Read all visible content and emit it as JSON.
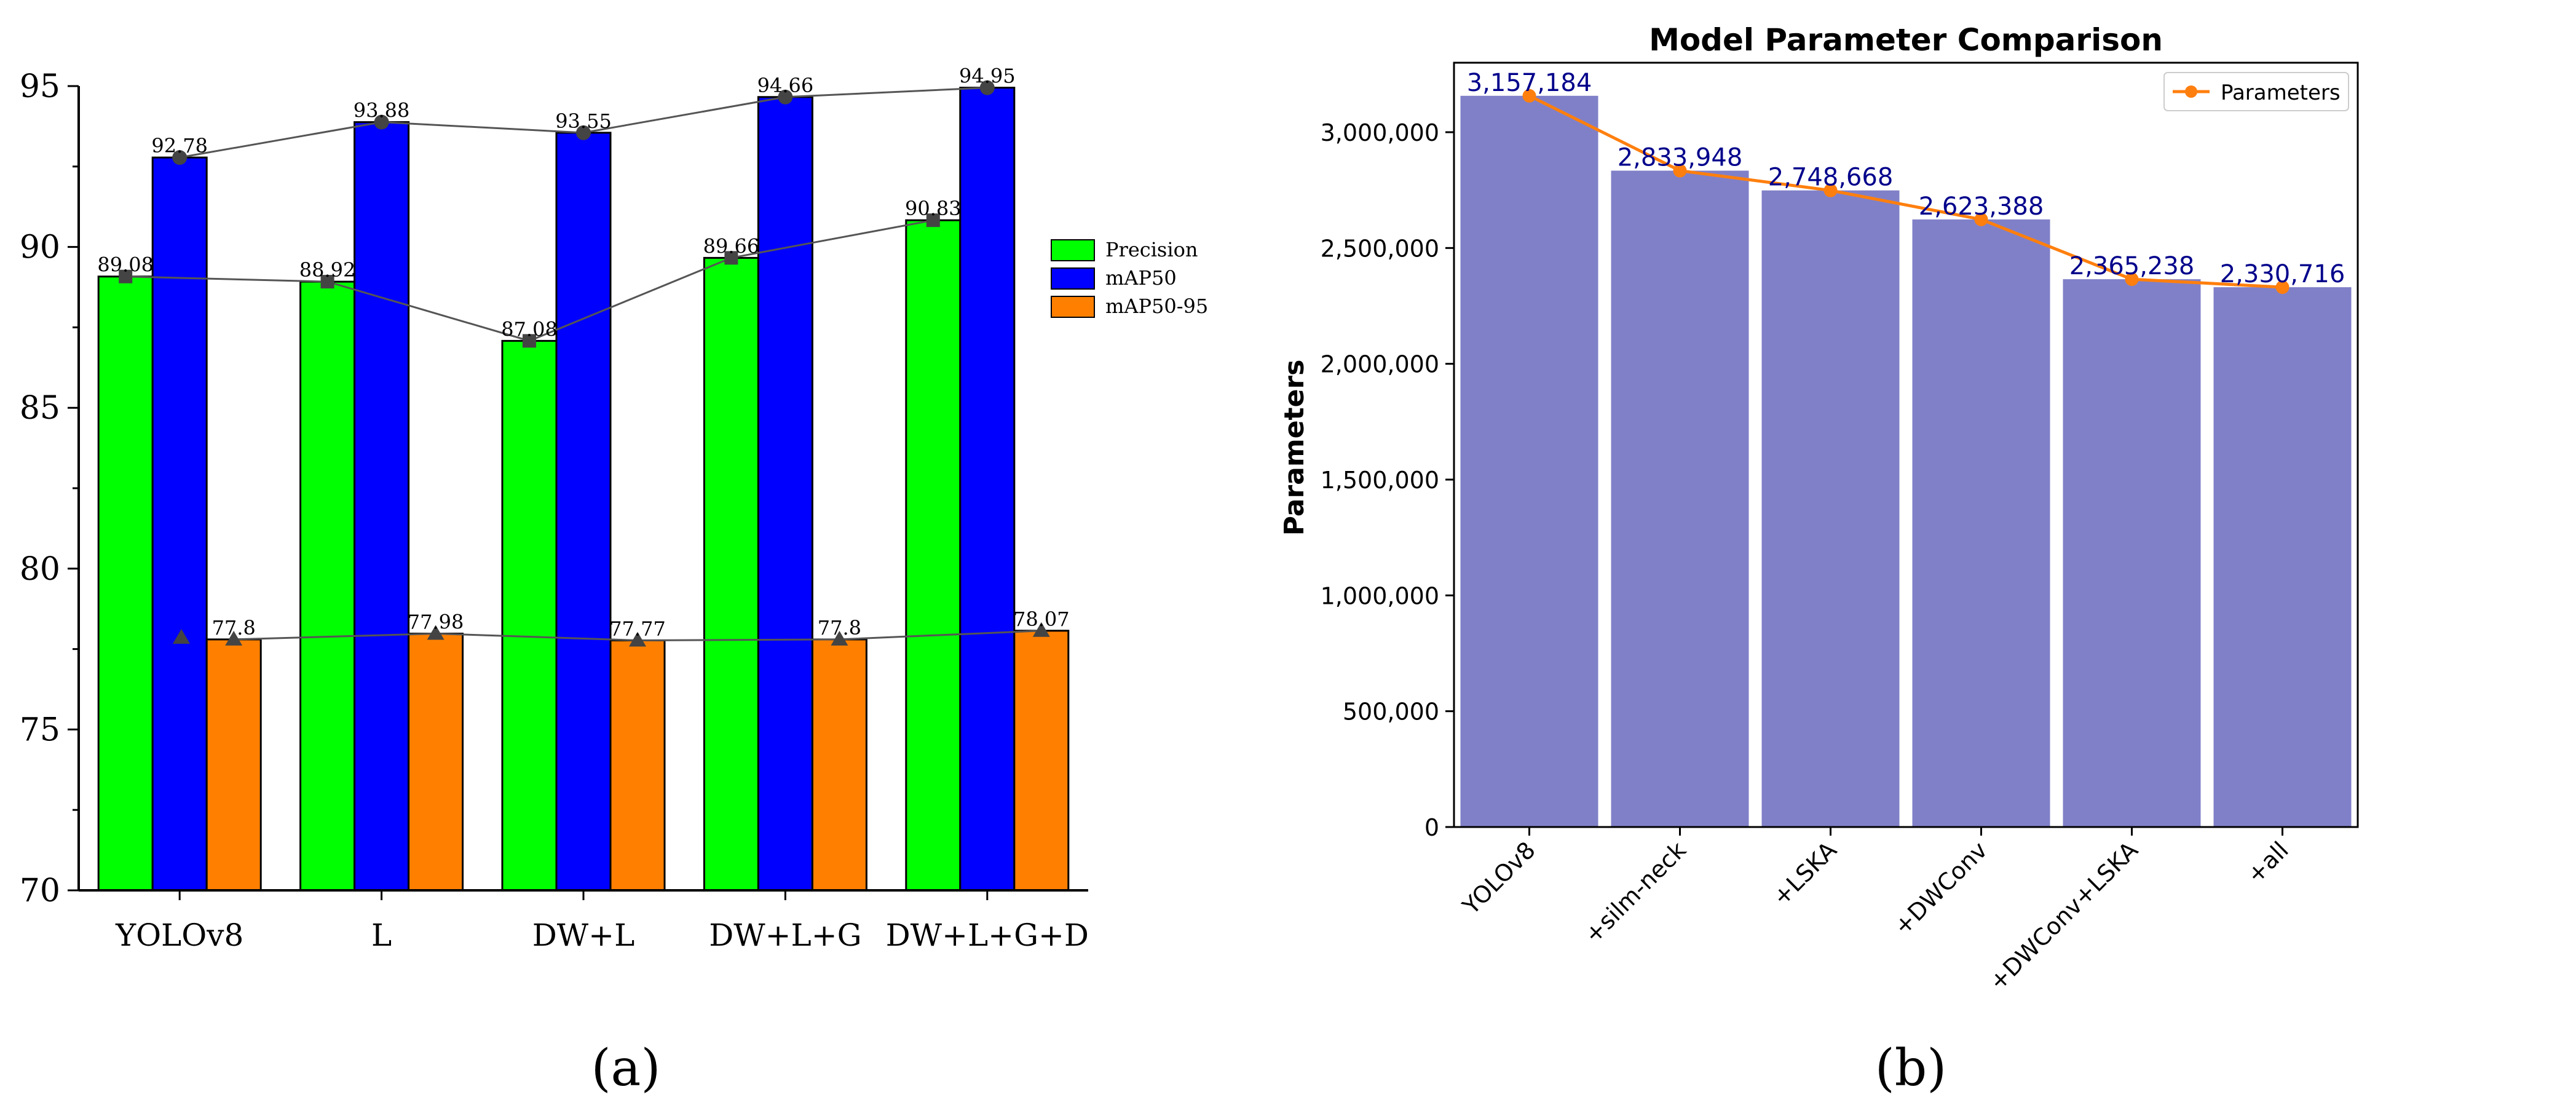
{
  "chart_data": [
    {
      "type": "bar",
      "panel_label": "(a)",
      "categories": [
        "YOLOv8",
        "L",
        "DW+L",
        "DW+L+G",
        "DW+L+G+D"
      ],
      "ylim": [
        70,
        95
      ],
      "yticks": [
        70,
        75,
        80,
        85,
        90,
        95
      ],
      "legend_position": "right",
      "series": [
        {
          "name": "Precision",
          "color": "#00ff00",
          "values": [
            89.08,
            88.92,
            87.08,
            89.66,
            90.83
          ],
          "labels": [
            "89.08",
            "88.92",
            "87.08",
            "89.66",
            "90.83"
          ],
          "marker": "square"
        },
        {
          "name": "mAP50",
          "color": "#0000ff",
          "values": [
            92.78,
            93.88,
            93.55,
            94.66,
            94.95
          ],
          "labels": [
            "92.78",
            "93.88",
            "93.55",
            "94.66",
            "94.95"
          ],
          "marker": "circle"
        },
        {
          "name": "mAP50-95",
          "color": "#ff8000",
          "values": [
            77.8,
            77.98,
            77.77,
            77.8,
            78.07
          ],
          "labels": [
            "77.8",
            "77.98",
            "77.77",
            "77.8",
            "78.07"
          ],
          "marker": "triangle"
        }
      ]
    },
    {
      "type": "bar",
      "panel_label": "(b)",
      "title": "Model Parameter Comparison",
      "ylabel": "Parameters",
      "categories": [
        "YOLOv8",
        "+silm-neck",
        "+LSKA",
        "+DWConv",
        "+DWConv+LSKA",
        "+all"
      ],
      "values": [
        3157184,
        2833948,
        2748668,
        2623388,
        2365238,
        2330716
      ],
      "labels": [
        "3,157,184",
        "2,833,948",
        "2,748,668",
        "2,623,388",
        "2,365,238",
        "2,330,716"
      ],
      "ylim": [
        0,
        3300000
      ],
      "yticks": [
        0,
        500000,
        1000000,
        1500000,
        2000000,
        2500000,
        3000000
      ],
      "ytick_labels": [
        "0",
        "500,000",
        "1,000,000",
        "1,500,000",
        "2,000,000",
        "2,500,000",
        "3,000,000"
      ],
      "bar_color": "#8080c8",
      "line_color": "#ff7f0e",
      "label_color": "#00008b",
      "legend": {
        "label": "Parameters",
        "position": "top-right"
      }
    }
  ]
}
